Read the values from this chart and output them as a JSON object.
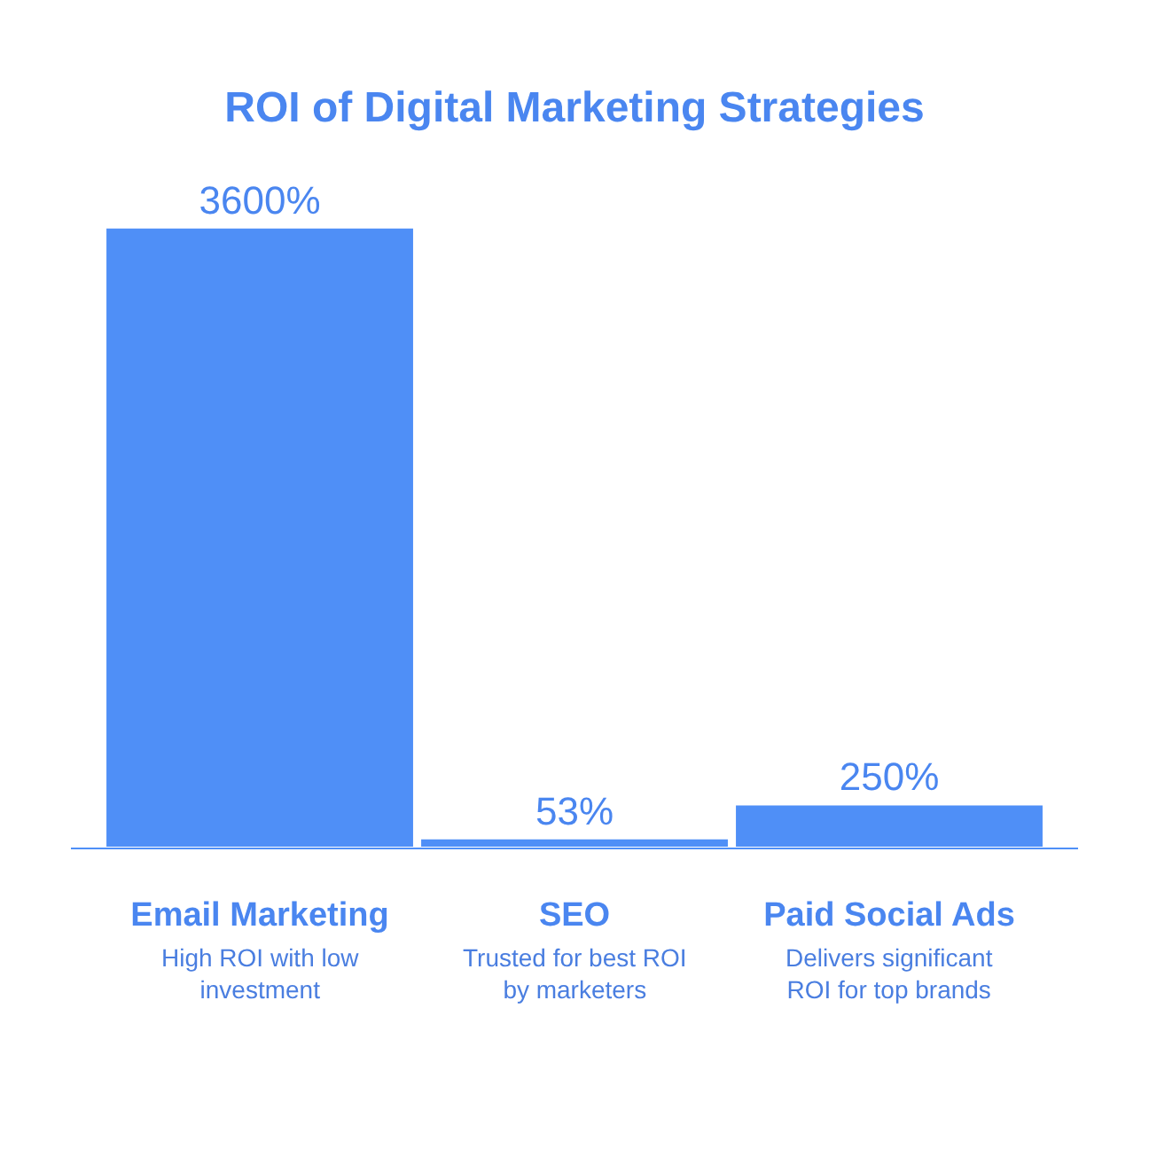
{
  "chart_data": {
    "type": "bar",
    "title": "ROI of Digital Marketing Strategies",
    "categories": [
      "Email Marketing",
      "SEO",
      "Paid Social Ads"
    ],
    "values": [
      3600,
      53,
      250
    ],
    "value_labels": [
      "3600%",
      "53%",
      "250%"
    ],
    "color": "#4f8ff7",
    "annotations": [
      "High ROI with low investment",
      "Trusted for best ROI by marketers",
      "Delivers significant ROI for top brands"
    ]
  }
}
